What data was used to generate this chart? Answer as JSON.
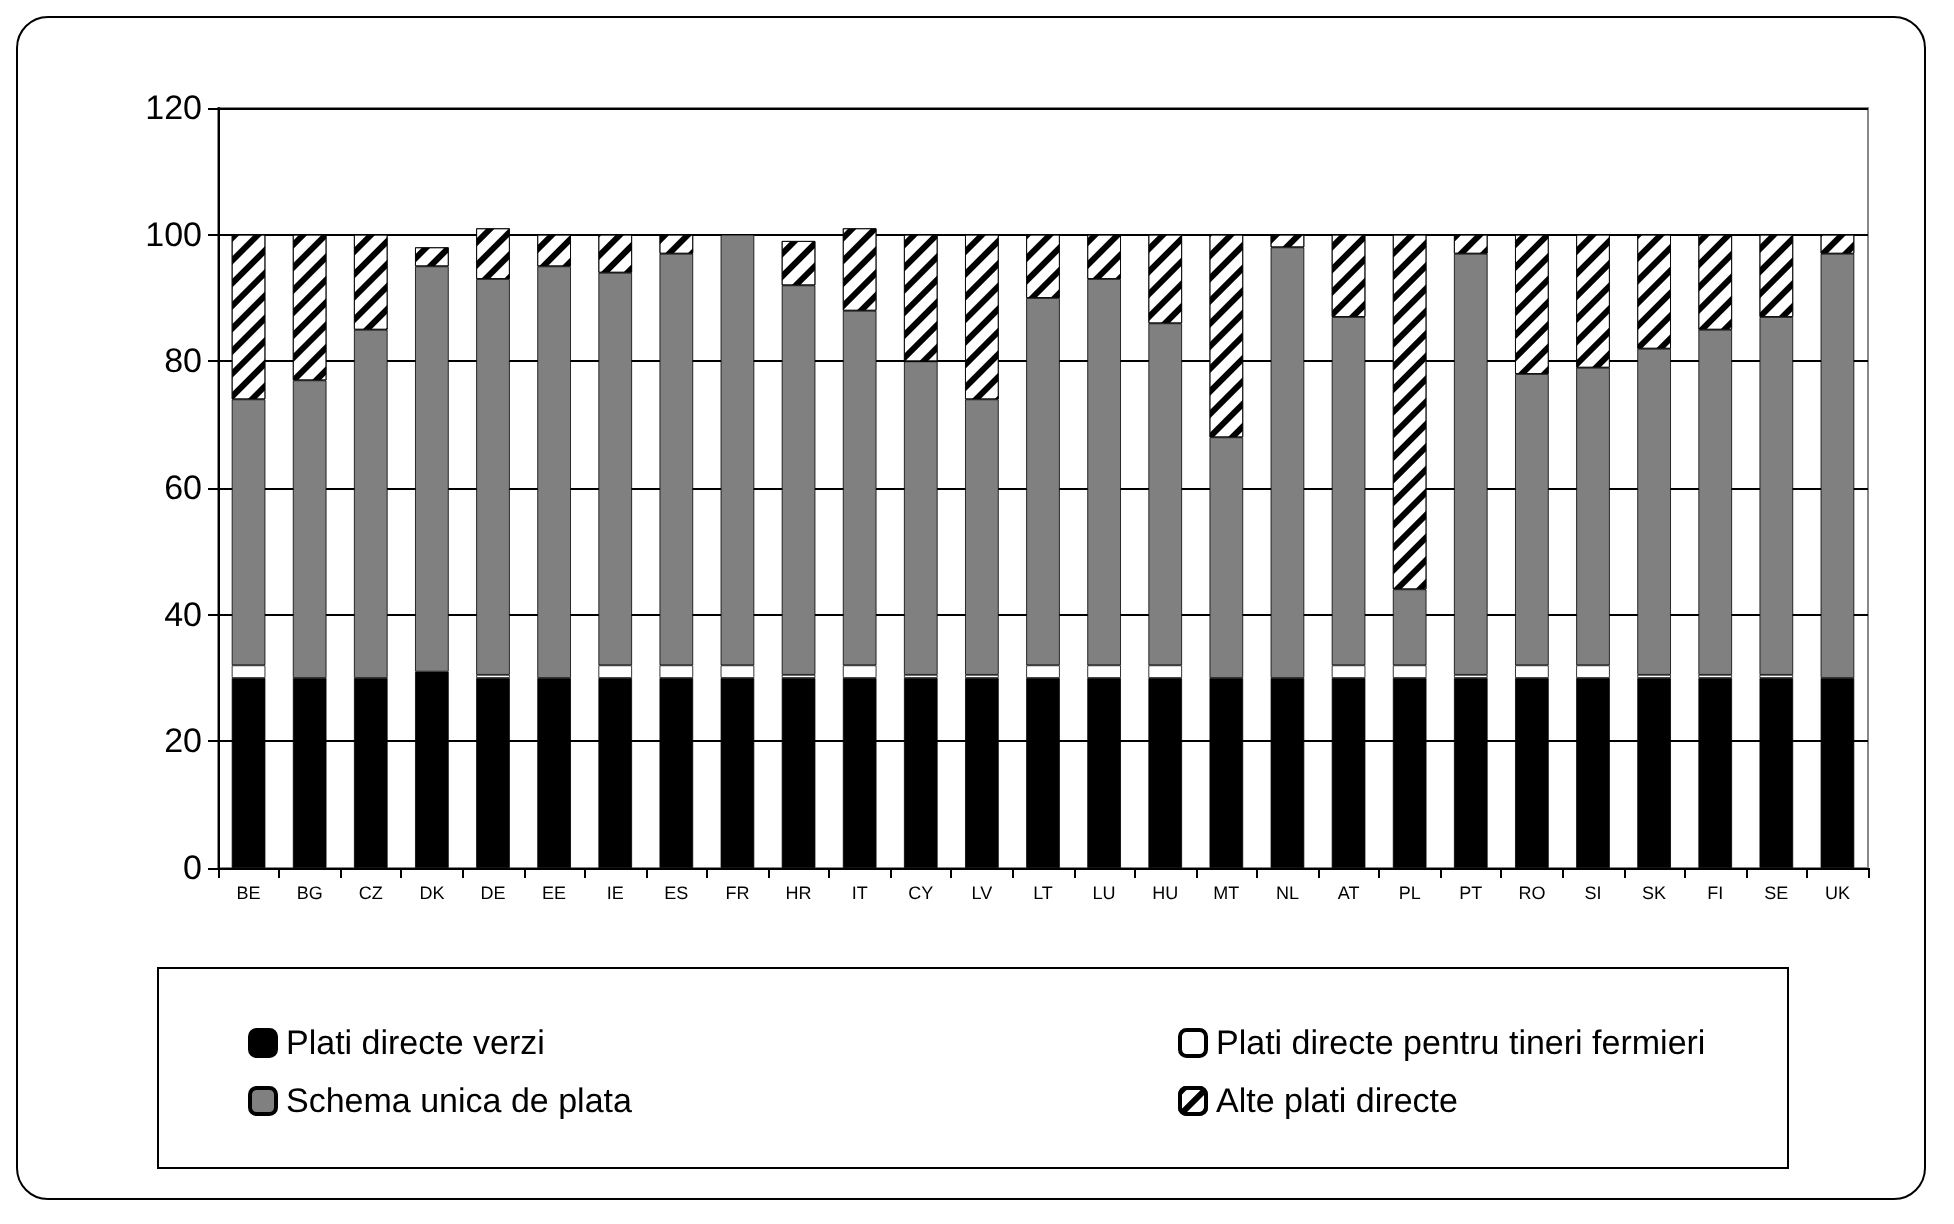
{
  "chart_data": {
    "type": "bar",
    "stacked": true,
    "categories": [
      "BE",
      "BG",
      "CZ",
      "DK",
      "DE",
      "EE",
      "IE",
      "ES",
      "FR",
      "HR",
      "IT",
      "CY",
      "LV",
      "LT",
      "LU",
      "HU",
      "MT",
      "NL",
      "AT",
      "PL",
      "PT",
      "RO",
      "SI",
      "SK",
      "FI",
      "SE",
      "UK"
    ],
    "series": [
      {
        "name": "Plati directe verzi",
        "color": "#000000",
        "values": [
          30,
          30,
          30,
          31,
          30,
          30,
          30,
          30,
          30,
          30,
          30,
          30,
          30,
          30,
          30,
          30,
          30,
          30,
          30,
          30,
          30,
          30,
          30,
          30,
          30,
          30,
          30
        ]
      },
      {
        "name": "Plati directe pentru tineri fermieri",
        "color": "#ffffff",
        "values": [
          2,
          0,
          0,
          0,
          0.5,
          0,
          2,
          2,
          2,
          0.5,
          2,
          0.5,
          0.5,
          2,
          2,
          2,
          0,
          0,
          2,
          2,
          0.5,
          2,
          2,
          0.5,
          0.5,
          0.5,
          0
        ]
      },
      {
        "name": "Schema unica de plata",
        "color": "#808080",
        "values": [
          42,
          47,
          55,
          64,
          62.5,
          65,
          62,
          65,
          68,
          61.5,
          56,
          49.5,
          43.5,
          58,
          61,
          54,
          38,
          68,
          55,
          12,
          66.5,
          46,
          47,
          51.5,
          54.5,
          56.5,
          67
        ]
      },
      {
        "name": "Alte plati directe",
        "color": "#ffffff",
        "values": [
          26,
          23,
          15,
          3,
          8,
          5,
          6,
          3,
          0,
          7,
          13,
          20,
          26,
          10,
          7,
          14,
          32,
          2,
          13,
          56,
          3,
          22,
          21,
          18,
          15,
          13,
          3
        ]
      }
    ],
    "ylim": [
      0,
      120
    ],
    "yticks": [
      0,
      20,
      40,
      60,
      80,
      100,
      120
    ],
    "grid": "y",
    "legend": "bottom"
  }
}
